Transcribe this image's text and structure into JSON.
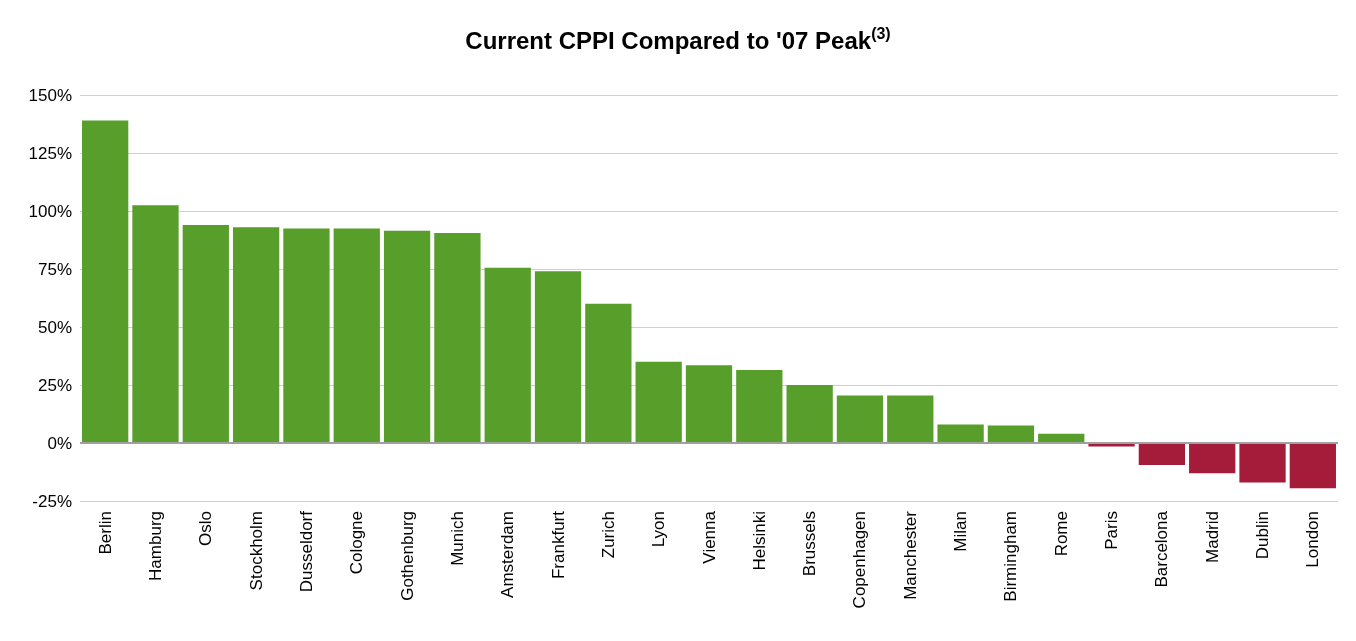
{
  "chart_data": {
    "type": "bar",
    "title": "Current CPPI Compared to '07 Peak$^{(3)}$",
    "categories": [
      "Berlin",
      "Hamburg",
      "Oslo",
      "Stockholm",
      "Dusseldorf",
      "Cologne",
      "Gothenburg",
      "Munich",
      "Amsterdam",
      "Frankfurt",
      "Zurich",
      "Lyon",
      "Vienna",
      "Helsinki",
      "Brussels",
      "Copenhagen",
      "Manchester",
      "Milan",
      "Birmingham",
      "Rome",
      "Paris",
      "Barcelona",
      "Madrid",
      "Dublin",
      "London"
    ],
    "values": [
      139,
      102.5,
      94,
      93,
      92.5,
      92.5,
      91.5,
      90.5,
      75.5,
      74,
      60,
      35,
      33.5,
      31.5,
      25,
      20.5,
      20.5,
      8,
      7.5,
      4,
      -1.5,
      -9.5,
      -13,
      -17,
      -19.5
    ],
    "colors": [
      "#589e2b",
      "#589e2b",
      "#589e2b",
      "#589e2b",
      "#589e2b",
      "#589e2b",
      "#589e2b",
      "#589e2b",
      "#589e2b",
      "#589e2b",
      "#589e2b",
      "#589e2b",
      "#589e2b",
      "#589e2b",
      "#589e2b",
      "#589e2b",
      "#589e2b",
      "#589e2b",
      "#589e2b",
      "#589e2b",
      "#a51c3a",
      "#a51c3a",
      "#a51c3a",
      "#a51c3a",
      "#a51c3a"
    ],
    "ylim": [
      -25,
      150
    ],
    "yticks": [
      {
        "value": -25,
        "label": "-25%"
      },
      {
        "value": 0,
        "label": "0%"
      },
      {
        "value": 25,
        "label": "25%"
      },
      {
        "value": 50,
        "label": "50%"
      },
      {
        "value": 75,
        "label": "75%"
      },
      {
        "value": 100,
        "label": "100%"
      },
      {
        "value": 125,
        "label": "125%"
      },
      {
        "value": 150,
        "label": "150%"
      }
    ],
    "grid": "y",
    "ref_lines": [
      {
        "axis": "y",
        "value": 0,
        "color": "#a0a0a0"
      }
    ]
  }
}
